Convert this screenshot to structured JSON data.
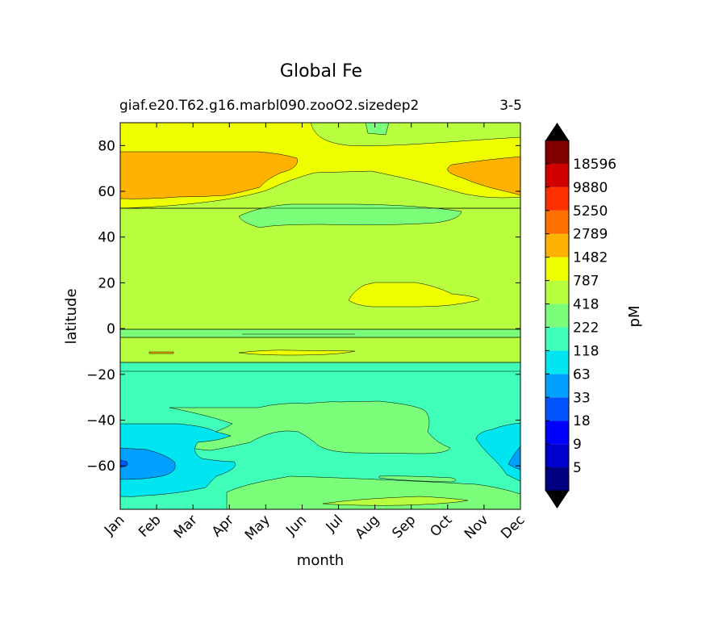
{
  "chart_data": {
    "type": "heatmap",
    "title": "Global Fe",
    "subtitle": "giaf.e20.T62.g16.marbl090.zooO2.sizedep2",
    "period": "3-5",
    "xlabel": "month",
    "ylabel": "latitude",
    "x_ticks": [
      "Jan",
      "Feb",
      "Mar",
      "Apr",
      "May",
      "Jun",
      "Jul",
      "Aug",
      "Sep",
      "Oct",
      "Nov",
      "Dec"
    ],
    "y_ticks": [
      80,
      60,
      40,
      20,
      0,
      -20,
      -40,
      -60
    ],
    "ylim": [
      -79,
      90
    ],
    "colorbar": {
      "label": "pM",
      "levels": [
        "5",
        "9",
        "18",
        "33",
        "63",
        "118",
        "222",
        "418",
        "787",
        "1482",
        "2789",
        "5250",
        "9880",
        "18596"
      ],
      "colors": [
        "#000080",
        "#0000cd",
        "#0000ff",
        "#0055ff",
        "#00a0ff",
        "#00e6f0",
        "#40ffb8",
        "#7bff7b",
        "#b8ff40",
        "#eeff00",
        "#ffb300",
        "#ff7000",
        "#ff3000",
        "#d00000",
        "#800000"
      ],
      "extend_colors": {
        "under": "#000000",
        "over": "#000000"
      }
    },
    "regions": [
      {
        "lat_range": [
          82,
          90
        ],
        "month_range": [
          1,
          12
        ],
        "level": "787-1482"
      },
      {
        "lat_range": [
          60,
          77
        ],
        "month_range": [
          1,
          3.5
        ],
        "level": "1482-2789"
      },
      {
        "lat_range": [
          61,
          74
        ],
        "month_range": [
          10.7,
          12
        ],
        "level": "1482-2789"
      },
      {
        "lat_range": [
          44,
          69
        ],
        "month_range": [
          4.5,
          10
        ],
        "level": "418-787"
      },
      {
        "lat_range": [
          10,
          20
        ],
        "month_range": [
          7.7,
          10.2
        ],
        "level": "787-1482"
      },
      {
        "lat_range": [
          -15,
          3
        ],
        "month_range": [
          1,
          12
        ],
        "level": "418-787"
      },
      {
        "lat_range": [
          -79,
          -15
        ],
        "month_range": [
          1,
          12
        ],
        "level": "118-222"
      },
      {
        "lat_range": [
          -60,
          -33
        ],
        "month_range": [
          3,
          10.5
        ],
        "level": "222-418"
      },
      {
        "lat_range": [
          -72,
          -42
        ],
        "month_range": [
          1,
          3.5
        ],
        "level": "63-118"
      },
      {
        "lat_range": [
          -68,
          -53
        ],
        "month_range": [
          1,
          2.5
        ],
        "level": "33-63"
      },
      {
        "lat_range": [
          -79,
          -70
        ],
        "month_range": [
          4,
          12
        ],
        "level": "222-418"
      }
    ]
  }
}
